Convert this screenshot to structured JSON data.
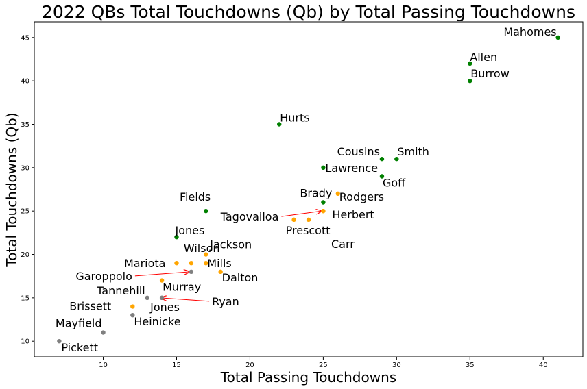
{
  "chart_data": {
    "type": "scatter",
    "title": "2022 QBs Total Touchdowns (Qb) by Total Passing Touchdowns",
    "xlabel": "Total Passing Touchdowns",
    "ylabel": "Total Touchdowns (Qb)",
    "xlim": [
      5.3,
      42.7
    ],
    "ylim": [
      8.2,
      46.8
    ],
    "xticks": [
      10,
      15,
      20,
      25,
      30,
      35,
      40
    ],
    "yticks": [
      10,
      15,
      20,
      25,
      30,
      35,
      40,
      45
    ],
    "grid": false,
    "legend": false,
    "colors": {
      "green": "#008000",
      "orange": "#ffa500",
      "gray": "#808080",
      "arrow": "#ff0000"
    },
    "points": [
      {
        "name": "Mahomes",
        "x": 41,
        "y": 45,
        "color": "green"
      },
      {
        "name": "Allen",
        "x": 35,
        "y": 42,
        "color": "green"
      },
      {
        "name": "Burrow",
        "x": 35,
        "y": 40,
        "color": "green"
      },
      {
        "name": "Hurts",
        "x": 22,
        "y": 35,
        "color": "green"
      },
      {
        "name": "Cousins",
        "x": 29,
        "y": 31,
        "color": "green"
      },
      {
        "name": "Smith",
        "x": 30,
        "y": 31,
        "color": "green"
      },
      {
        "name": "Lawrence",
        "x": 25,
        "y": 30,
        "color": "green"
      },
      {
        "name": "Goff",
        "x": 29,
        "y": 29,
        "color": "green"
      },
      {
        "name": "Brady",
        "x": 25,
        "y": 26,
        "color": "green"
      },
      {
        "name": "Rodgers",
        "x": 26,
        "y": 27,
        "color": "orange"
      },
      {
        "name": "Fields",
        "x": 17,
        "y": 25,
        "color": "green"
      },
      {
        "name": "Herbert",
        "x": 25,
        "y": 25,
        "color": "orange"
      },
      {
        "name": "Tagovailoa",
        "x": 25,
        "y": 25,
        "color": "orange"
      },
      {
        "name": "Prescott",
        "x": 23,
        "y": 24,
        "color": "orange"
      },
      {
        "name": "Carr",
        "x": 24,
        "y": 24,
        "color": "orange"
      },
      {
        "name": "Jones",
        "x": 15,
        "y": 22,
        "color": "green"
      },
      {
        "name": "Jackson",
        "x": 17,
        "y": 20,
        "color": "orange"
      },
      {
        "name": "Wilson",
        "x": 16,
        "y": 19,
        "color": "orange"
      },
      {
        "name": "Mariota",
        "x": 15,
        "y": 19,
        "color": "orange"
      },
      {
        "name": "Mills",
        "x": 17,
        "y": 19,
        "color": "orange"
      },
      {
        "name": "Garoppolo",
        "x": 16,
        "y": 18,
        "color": "gray"
      },
      {
        "name": "Dalton",
        "x": 18,
        "y": 18,
        "color": "orange"
      },
      {
        "name": "Murray",
        "x": 14,
        "y": 17,
        "color": "orange"
      },
      {
        "name": "Tannehill",
        "x": 13,
        "y": 15,
        "color": "gray"
      },
      {
        "name": "Ryan",
        "x": 14,
        "y": 15,
        "color": "gray"
      },
      {
        "name": "Jones",
        "x": 14,
        "y": 15,
        "color": "gray"
      },
      {
        "name": "Brissett",
        "x": 12,
        "y": 14,
        "color": "orange"
      },
      {
        "name": "Heinicke",
        "x": 12,
        "y": 13,
        "color": "gray"
      },
      {
        "name": "Mayfield",
        "x": 10,
        "y": 11,
        "color": "gray"
      },
      {
        "name": "Pickett",
        "x": 7,
        "y": 10,
        "color": "gray"
      }
    ]
  }
}
